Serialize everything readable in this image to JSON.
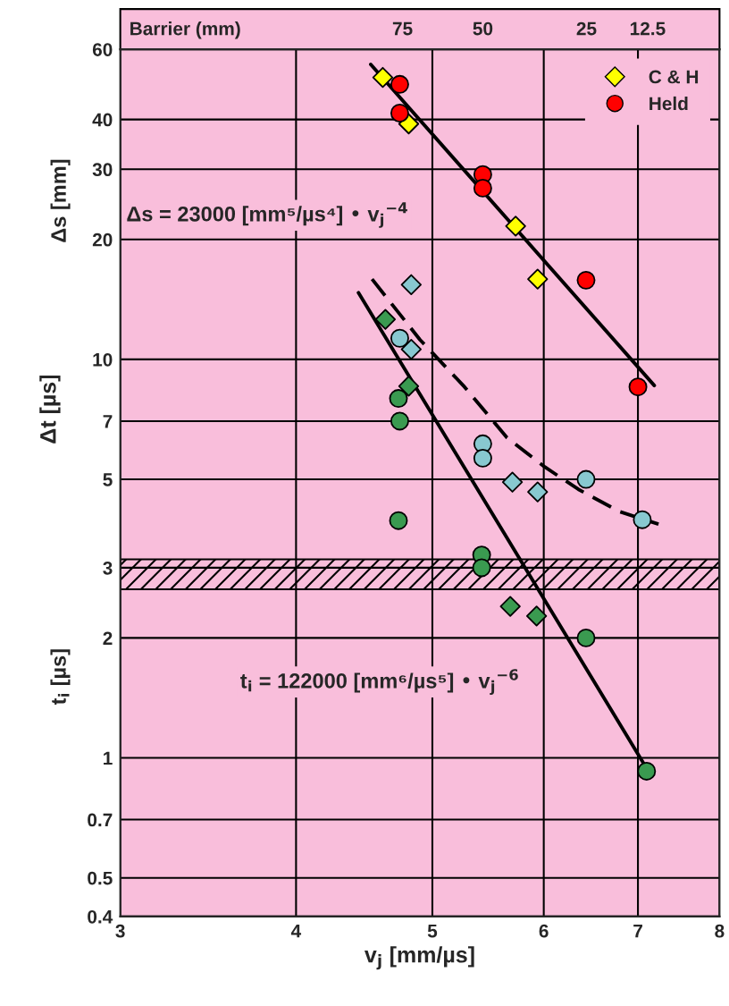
{
  "chart_data": {
    "type": "scatter",
    "xlabel": "v$_{j}$ [mm/µs]",
    "ylabel": "Δt [µs]",
    "log": "xy",
    "xlim": [
      3,
      8
    ],
    "xticks": [
      3,
      4,
      5,
      6,
      7,
      8
    ],
    "ylim": [
      0.4,
      60
    ],
    "yticks": [
      0.4,
      0.5,
      0.7,
      1,
      2,
      3,
      5,
      7,
      10,
      20,
      30,
      40,
      60
    ],
    "grid": true,
    "legend": "top right",
    "bands": [
      {
        "axis": "y",
        "from": 2.65,
        "to": 3.15,
        "color": "#000000"
      }
    ],
    "annotations": [
      "Δs = 23000 [mm⁵/µs⁴] • v$_{j}$$^{−4}$",
      "t$_{i}$ = 122000 [mm⁶/µs⁵] • v$_{j}$$^{−6}$",
      "Δs [mm]",
      "t$_{i}$ [µs]",
      "Barrier (mm)",
      "75",
      "50",
      "25",
      "12.5"
    ],
    "series": [
      {
        "type": "line",
        "color": "#000000",
        "line_style": "solid",
        "x": [
          4.52,
          7.19
        ],
        "values": [
          55,
          8.6
        ]
      },
      {
        "type": "line",
        "color": "#000000",
        "line_style": "solid",
        "x": [
          4.43,
          7.07
        ],
        "values": [
          14.7,
          0.965
        ]
      },
      {
        "type": "line",
        "color": "#000000",
        "line_style": "dashed",
        "x": [
          4.53,
          4.9,
          5.27,
          5.65,
          6.01,
          6.35,
          6.79,
          7.24
        ],
        "values": [
          15.9,
          11.2,
          8.53,
          6.36,
          5.37,
          4.72,
          4.15,
          3.86
        ]
      },
      {
        "name": "C & H",
        "color": "#ffff00",
        "marker": "diamond",
        "x": [
          4.61,
          4.81,
          5.73,
          5.94
        ],
        "values": [
          51,
          39,
          21.6,
          15.9
        ]
      },
      {
        "name": "Held",
        "color": "#ff0000",
        "marker": "circle",
        "x": [
          4.74,
          4.74,
          5.43,
          5.43,
          6.43,
          7.0
        ],
        "values": [
          49,
          41.5,
          29.1,
          26.9,
          15.8,
          8.53
        ]
      },
      {
        "color": "#88c8d0",
        "marker": "diamond",
        "x": [
          4.83,
          4.83,
          5.7,
          5.94
        ],
        "values": [
          15.4,
          10.6,
          4.92,
          4.65
        ]
      },
      {
        "color": "#88c8d0",
        "marker": "circle",
        "x": [
          4.74,
          5.43,
          5.43,
          6.43,
          7.05
        ],
        "values": [
          11.3,
          6.14,
          5.65,
          5.0,
          3.96
        ]
      },
      {
        "color": "#3a9a50",
        "marker": "diamond",
        "x": [
          4.63,
          4.81,
          5.68,
          5.93
        ],
        "values": [
          12.6,
          8.57,
          2.4,
          2.27
        ]
      },
      {
        "color": "#3a9a50",
        "marker": "circle",
        "x": [
          4.73,
          4.74,
          4.73,
          5.42,
          5.42,
          6.43,
          7.1
        ],
        "values": [
          7.98,
          7.0,
          3.94,
          3.23,
          3.0,
          2.0,
          0.926
        ]
      }
    ]
  }
}
